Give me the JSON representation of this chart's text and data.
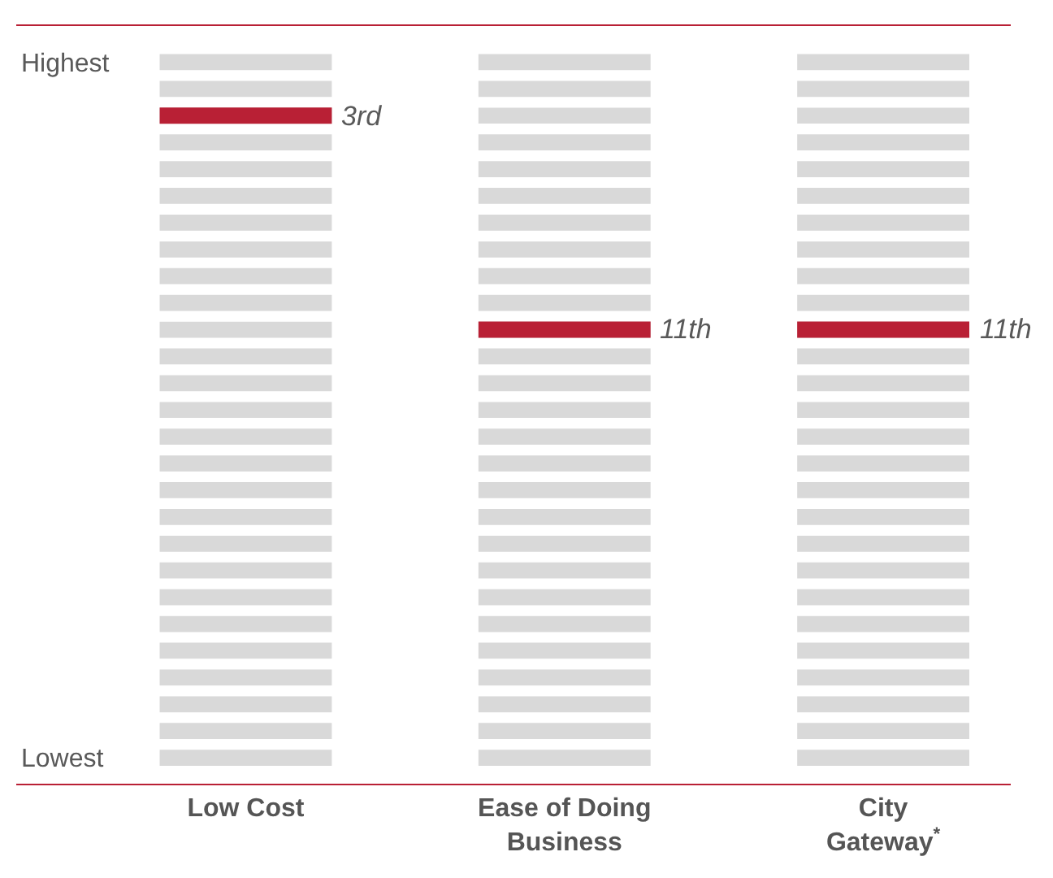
{
  "chart_data": {
    "type": "other",
    "categories": [
      "Low Cost",
      "Ease of Doing Business",
      "City Gateway$^{*}$"
    ],
    "values": [
      3,
      11,
      11
    ],
    "value_labels": [
      "3rd",
      "11th",
      "11th"
    ],
    "color": "#b92035",
    "y_categories": [
      "Highest",
      null,
      null,
      null,
      null,
      null,
      null,
      null,
      null,
      null,
      null,
      null,
      null,
      null,
      null,
      null,
      null,
      null,
      null,
      null,
      null,
      null,
      null,
      null,
      null,
      null,
      "Lowest"
    ]
  }
}
